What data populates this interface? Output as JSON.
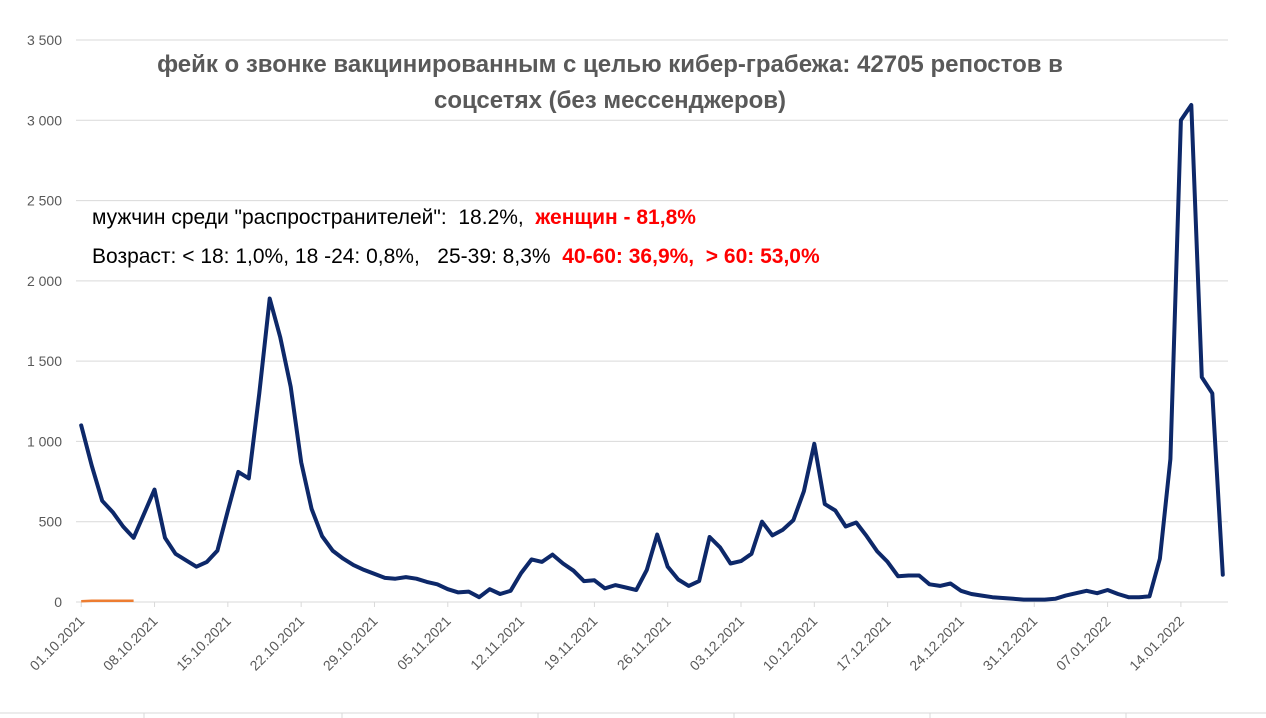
{
  "chart_data": {
    "type": "line",
    "title_line1": "фейк о звонке вакцинированным с целью кибер-грабежа: 42705 репостов в",
    "title_line2": "соцсетях (без мессенджеров)",
    "annotation_line1": {
      "normal": "мужчин среди \"распространителей\":  18.2%,  ",
      "highlight": "женщин - 81,8%"
    },
    "annotation_line2": {
      "normal": "Возраст: < 18: 1,0%, 18 -24: 0,8%,   25-39: 8,3%  ",
      "highlight": "40-60: 36,9%,  > 60: 53,0%"
    },
    "ylim": [
      0,
      3500
    ],
    "yticks": [
      0,
      500,
      1000,
      1500,
      2000,
      2500,
      3000,
      3500
    ],
    "ytick_labels": [
      "0",
      "500",
      "1 000",
      "1 500",
      "2 000",
      "2 500",
      "3 000",
      "3 500"
    ],
    "xtick_labels": [
      "01.10.2021",
      "08.10.2021",
      "15.10.2021",
      "22.10.2021",
      "29.10.2021",
      "05.11.2021",
      "12.11.2021",
      "19.11.2021",
      "26.11.2021",
      "03.12.2021",
      "10.12.2021",
      "17.12.2021",
      "24.12.2021",
      "31.12.2021",
      "07.01.2022",
      "14.01.2022"
    ],
    "colors": {
      "main": "#0d2869",
      "secondary": "#ed7d31",
      "grid": "#d9d9d9",
      "accent": "#ff0000"
    },
    "series": [
      {
        "values": [
          1100,
          850,
          630,
          560,
          470,
          400,
          550,
          700,
          400,
          300,
          260,
          220,
          250,
          320,
          570,
          810,
          770,
          1300,
          1890,
          1650,
          1340,
          870,
          580,
          410,
          320,
          270,
          230,
          200,
          175,
          150,
          145,
          155,
          145,
          125,
          110,
          80,
          60,
          65,
          30,
          80,
          50,
          70,
          180,
          265,
          250,
          295,
          240,
          195,
          130,
          135,
          85,
          105,
          90,
          75,
          200,
          420,
          220,
          140,
          100,
          130,
          405,
          340,
          240,
          255,
          300,
          500,
          415,
          450,
          510,
          690,
          985,
          610,
          570,
          470,
          495,
          410,
          315,
          250,
          160,
          165,
          165,
          110,
          100,
          115,
          70,
          50,
          40,
          30,
          25,
          20,
          15,
          15,
          15,
          20,
          40,
          55,
          70,
          55,
          75,
          50,
          30,
          30,
          35,
          270,
          890,
          3000,
          3095,
          1400,
          1300,
          170
        ]
      },
      {
        "values": [
          5,
          8,
          8,
          8,
          8,
          8
        ]
      }
    ]
  }
}
